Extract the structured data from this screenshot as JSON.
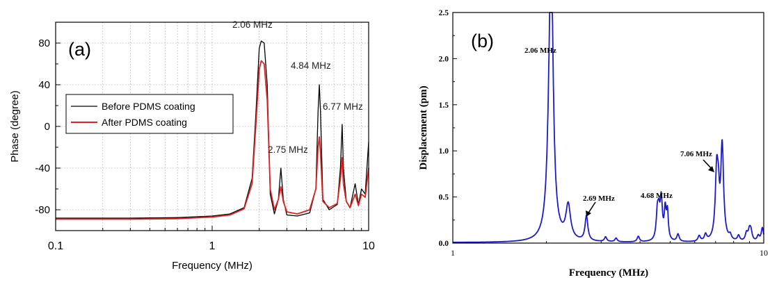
{
  "chart_data": [
    {
      "type": "line",
      "panel_label": "(a)",
      "xlabel": "Frequency (MHz)",
      "ylabel": "Phase (degree)",
      "xscale": "log",
      "xlim": [
        0.1,
        10
      ],
      "ylim": [
        -100,
        100
      ],
      "xticks": [
        {
          "v": 0.1,
          "label": "0.1"
        },
        {
          "v": 1,
          "label": "1"
        },
        {
          "v": 10,
          "label": "10"
        }
      ],
      "yticks": [
        {
          "v": 80,
          "label": "80"
        },
        {
          "v": 40,
          "label": "40"
        },
        {
          "v": 0,
          "label": "0"
        },
        {
          "v": -40,
          "label": "-40"
        },
        {
          "v": -80,
          "label": "-80"
        }
      ],
      "grid": true,
      "legend_placement": "left-middle",
      "series": [
        {
          "name": "Before PDMS coating",
          "color": "#000000",
          "x": [
            0.1,
            0.3,
            0.6,
            1.0,
            1.3,
            1.6,
            1.8,
            1.9,
            2.0,
            2.06,
            2.15,
            2.25,
            2.35,
            2.5,
            2.65,
            2.75,
            2.85,
            3.0,
            3.5,
            4.2,
            4.6,
            4.75,
            4.84,
            4.92,
            5.1,
            5.6,
            6.3,
            6.6,
            6.77,
            6.9,
            7.2,
            7.6,
            8.2,
            8.6,
            9.0,
            9.5,
            10.0
          ],
          "y": [
            -88,
            -88,
            -87.5,
            -86,
            -84,
            -78,
            -50,
            10,
            75,
            82,
            80,
            40,
            -65,
            -84,
            -70,
            -40,
            -70,
            -85,
            -86,
            -83,
            -60,
            15,
            40,
            15,
            -70,
            -80,
            -75,
            -40,
            2,
            -40,
            -72,
            -78,
            -55,
            -75,
            -60,
            -65,
            -15
          ]
        },
        {
          "name": "After PDMS coating",
          "color": "#e02020",
          "x": [
            0.1,
            0.3,
            0.6,
            1.0,
            1.3,
            1.6,
            1.8,
            1.9,
            2.0,
            2.06,
            2.15,
            2.25,
            2.35,
            2.5,
            2.65,
            2.75,
            2.85,
            3.0,
            3.5,
            4.2,
            4.6,
            4.75,
            4.84,
            4.92,
            5.1,
            5.6,
            6.3,
            6.6,
            6.77,
            6.9,
            7.2,
            7.6,
            8.2,
            8.6,
            9.0,
            9.5,
            10.0
          ],
          "y": [
            -89,
            -89,
            -88.5,
            -87,
            -85,
            -79,
            -55,
            0,
            55,
            63,
            60,
            25,
            -60,
            -80,
            -70,
            -58,
            -72,
            -82,
            -84,
            -80,
            -60,
            -20,
            -10,
            -25,
            -72,
            -78,
            -74,
            -50,
            -30,
            -55,
            -72,
            -78,
            -65,
            -76,
            -65,
            -68,
            -40
          ]
        }
      ],
      "annotations": [
        {
          "text": "2.06 MHz",
          "x": 2.06,
          "y": 82
        },
        {
          "text": "4.84 MHz",
          "x": 4.84,
          "y": 40
        },
        {
          "text": "6.77 MHz",
          "x": 6.77,
          "y": 2
        },
        {
          "text": "2.75 MHz",
          "x": 2.75,
          "y": -40
        }
      ]
    },
    {
      "type": "line",
      "panel_label": "(b)",
      "xlabel": "Frequency (MHz)",
      "ylabel": "Displacement (pm)",
      "xscale": "log",
      "xlim": [
        1,
        10
      ],
      "ylim": [
        0,
        2.5
      ],
      "xticks": [
        {
          "v": 1,
          "label": "1"
        },
        {
          "v": 10,
          "label": "10"
        }
      ],
      "yticks": [
        {
          "v": 0,
          "label": "0.0"
        },
        {
          "v": 0.5,
          "label": "0.5"
        },
        {
          "v": 1.0,
          "label": "1.0"
        },
        {
          "v": 1.5,
          "label": "1.5"
        },
        {
          "v": 2.0,
          "label": "2.0"
        },
        {
          "v": 2.5,
          "label": "2.5"
        }
      ],
      "grid": false,
      "series": [
        {
          "color": "#1a1acc",
          "peaks": [
            {
              "x": 2.06,
              "y": 1.96,
              "w": 0.02
            },
            {
              "x": 2.08,
              "y": 1.3,
              "w": 0.015
            },
            {
              "x": 2.35,
              "y": 0.37,
              "w": 0.02
            },
            {
              "x": 2.69,
              "y": 0.27,
              "w": 0.012
            },
            {
              "x": 3.1,
              "y": 0.05,
              "w": 0.01
            },
            {
              "x": 3.35,
              "y": 0.04,
              "w": 0.01
            },
            {
              "x": 3.95,
              "y": 0.06,
              "w": 0.01
            },
            {
              "x": 4.55,
              "y": 0.3,
              "w": 0.01
            },
            {
              "x": 4.6,
              "y": 0.2,
              "w": 0.008
            },
            {
              "x": 4.68,
              "y": 0.44,
              "w": 0.01
            },
            {
              "x": 4.82,
              "y": 0.31,
              "w": 0.008
            },
            {
              "x": 4.9,
              "y": 0.3,
              "w": 0.008
            },
            {
              "x": 5.3,
              "y": 0.08,
              "w": 0.01
            },
            {
              "x": 6.2,
              "y": 0.06,
              "w": 0.01
            },
            {
              "x": 6.5,
              "y": 0.07,
              "w": 0.01
            },
            {
              "x": 7.06,
              "y": 0.76,
              "w": 0.012
            },
            {
              "x": 7.15,
              "y": 0.3,
              "w": 0.008
            },
            {
              "x": 7.35,
              "y": 1.02,
              "w": 0.012
            },
            {
              "x": 7.8,
              "y": 0.05,
              "w": 0.01
            },
            {
              "x": 8.3,
              "y": 0.06,
              "w": 0.01
            },
            {
              "x": 8.8,
              "y": 0.08,
              "w": 0.01
            },
            {
              "x": 9.0,
              "y": 0.12,
              "w": 0.012
            },
            {
              "x": 9.1,
              "y": 0.08,
              "w": 0.01
            },
            {
              "x": 9.6,
              "y": 0.06,
              "w": 0.01
            },
            {
              "x": 9.9,
              "y": 0.15,
              "w": 0.01
            }
          ]
        }
      ],
      "annotations": [
        {
          "text": "2.06 MHz",
          "x": 2.06,
          "y": 2.05
        },
        {
          "text": "2.69 MHz",
          "x": 2.69,
          "y": 0.27,
          "arrow": true
        },
        {
          "text": "4.68 MHz",
          "x": 4.68,
          "y": 0.52
        },
        {
          "text": "7.06 MHz",
          "x": 7.06,
          "y": 0.76,
          "arrow": true
        }
      ]
    }
  ]
}
